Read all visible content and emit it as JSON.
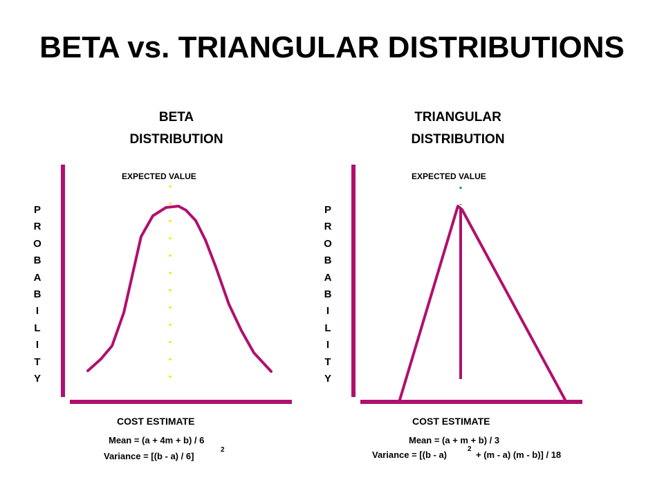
{
  "title": "BETA vs. TRIANGULAR DISTRIBUTIONS",
  "colors": {
    "axis": "#b0106e",
    "beta_marker": "#f2ee3a",
    "tri_marker": "#1a9a2a"
  },
  "beta": {
    "heading_line1": "BETA",
    "heading_line2": "DISTRIBUTION",
    "expected_label": "EXPECTED VALUE",
    "y_axis_letters": [
      "P",
      "R",
      "O",
      "B",
      "A",
      "B",
      "I",
      "L",
      "I",
      "T",
      "Y"
    ],
    "x_label": "COST ESTIMATE",
    "mean": "Mean = (a + 4m + b) / 6",
    "variance": "Variance = [(b - a) / 6]",
    "variance_exp": "2"
  },
  "triangular": {
    "heading_line1": "TRIANGULAR",
    "heading_line2": "DISTRIBUTION",
    "expected_label": "EXPECTED VALUE",
    "y_axis_letters": [
      "P",
      "R",
      "O",
      "B",
      "A",
      "B",
      "I",
      "L",
      "I",
      "T",
      "Y"
    ],
    "x_label": "COST ESTIMATE",
    "mean": "Mean = (a + m + b) / 3",
    "variance_a": "Variance = [(b - a)",
    "variance_exp": "2",
    "variance_b": "+ (m - a) (m - b)] / 18"
  }
}
